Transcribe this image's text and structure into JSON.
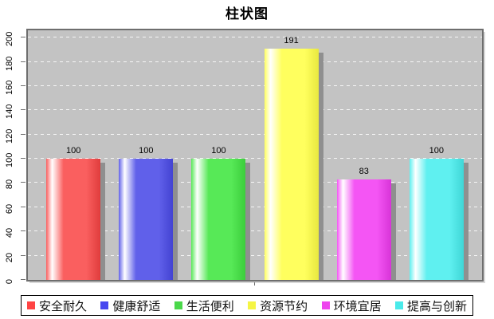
{
  "title": "柱状图",
  "chart_data": {
    "type": "bar",
    "title": "柱状图",
    "categories": [
      "安全耐久",
      "健康舒适",
      "生活便利",
      "资源节约",
      "环境宜居",
      "提高与创新"
    ],
    "values": [
      100,
      100,
      100,
      191,
      83,
      100
    ],
    "value_labels": [
      "100",
      "100",
      "100",
      "191",
      "83",
      "100"
    ],
    "xlabel": "",
    "ylabel": "",
    "ylim": [
      0,
      206
    ],
    "yticks": [
      0,
      20,
      40,
      60,
      80,
      100,
      120,
      140,
      160,
      180,
      200
    ],
    "grid": {
      "horizontal": true,
      "style": "dashed",
      "color": "#ffffff"
    },
    "plot_background": "#c3c3c3",
    "plot_border_color": "#6e6e6e",
    "bar_shadow_color": "#8f8f8f",
    "legend_position": "bottom",
    "legend_border_color": "#000000",
    "series_styles": [
      {
        "main": "#fa5f5f",
        "dark": "#e03c3c",
        "highlight": "#ffffff",
        "legend": "#ff4444"
      },
      {
        "main": "#6060ea",
        "dark": "#4343d2",
        "highlight": "#ffffff",
        "legend": "#4646ef"
      },
      {
        "main": "#57e957",
        "dark": "#3bce3b",
        "highlight": "#ffffff",
        "legend": "#4ad84a"
      },
      {
        "main": "#ffff5e",
        "dark": "#e8e83f",
        "highlight": "#ffffff",
        "legend": "#f5f544"
      },
      {
        "main": "#f455f4",
        "dark": "#d834d8",
        "highlight": "#ffffff",
        "legend": "#ee44ee"
      },
      {
        "main": "#5ff0f0",
        "dark": "#3fd6d6",
        "highlight": "#ffffff",
        "legend": "#4aeaea"
      }
    ]
  }
}
